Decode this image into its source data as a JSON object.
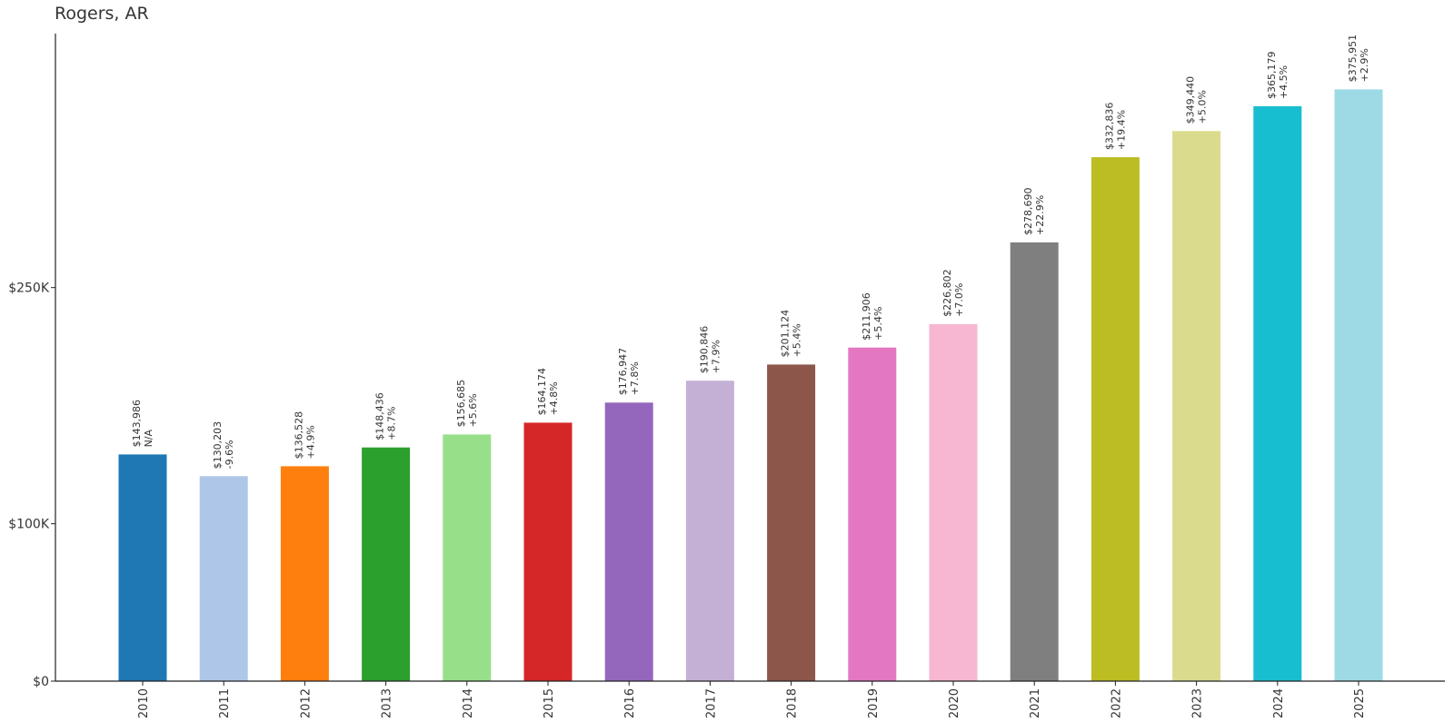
{
  "chart_data": {
    "type": "bar",
    "title": "Rogers, AR",
    "xlabel": "",
    "ylabel": "",
    "ylim": [
      0,
      415000
    ],
    "yticks": [
      {
        "value": 0,
        "label": "$0"
      },
      {
        "value": 100000,
        "label": "$100K"
      },
      {
        "value": 250000,
        "label": "$250K"
      }
    ],
    "grid": false,
    "categories": [
      "2010",
      "2011",
      "2012",
      "2013",
      "2014",
      "2015",
      "2016",
      "2017",
      "2018",
      "2019",
      "2020",
      "2021",
      "2022",
      "2023",
      "2024",
      "2025"
    ],
    "values": [
      143986,
      130203,
      136528,
      148436,
      156685,
      164174,
      176947,
      190846,
      201124,
      211906,
      226802,
      278690,
      332836,
      349440,
      365179,
      375951
    ],
    "value_labels": [
      "$143,986",
      "$130,203",
      "$136,528",
      "$148,436",
      "$156,685",
      "$164,174",
      "$176,947",
      "$190,846",
      "$201,124",
      "$211,906",
      "$226,802",
      "$278,690",
      "$332,836",
      "$349,440",
      "$365,179",
      "$375,951"
    ],
    "change_labels": [
      "N/A",
      "-9.6%",
      "+4.9%",
      "+8.7%",
      "+5.6%",
      "+4.8%",
      "+7.8%",
      "+7.9%",
      "+5.4%",
      "+5.4%",
      "+7.0%",
      "+22.9%",
      "+19.4%",
      "+5.0%",
      "+4.5%",
      "+2.9%"
    ],
    "colors": [
      "#1f77b4",
      "#aec7e8",
      "#ff7f0e",
      "#2ca02c",
      "#98df8a",
      "#d62728",
      "#9467bd",
      "#c5b0d5",
      "#8c564b",
      "#e377c2",
      "#f7b6d2",
      "#7f7f7f",
      "#bcbd22",
      "#dbdb8d",
      "#17becf",
      "#9edae5"
    ]
  }
}
